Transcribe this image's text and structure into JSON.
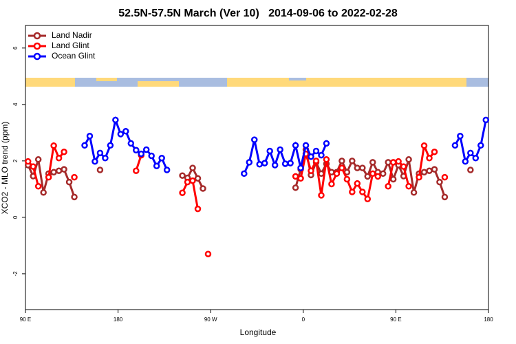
{
  "chart_data": {
    "type": "line",
    "title": "52.5N-57.5N March (Ver 10)   2014-09-06 to 2022-02-28",
    "x_label": "Longitude",
    "y_label": "XCO2 - MLO trend (ppm)",
    "x": [
      92.5,
      97.5,
      102.5,
      107.5,
      112.5,
      117.5,
      122.5,
      127.5,
      132.5,
      137.5,
      142.5,
      147.5,
      152.5,
      157.5,
      162.5,
      167.5,
      172.5,
      177.5,
      182.5,
      187.5,
      192.5,
      197.5,
      202.5,
      207.5,
      212.5,
      217.5,
      222.5,
      227.5,
      232.5,
      237.5,
      242.5,
      247.5,
      252.5,
      257.5,
      262.5,
      267.5,
      272.5,
      277.5,
      282.5,
      287.5,
      292.5,
      297.5,
      302.5,
      307.5,
      312.5,
      317.5,
      322.5,
      327.5,
      332.5,
      337.5,
      342.5,
      347.5,
      352.5,
      357.5,
      362.5,
      367.5,
      372.5,
      377.5,
      382.5,
      387.5,
      392.5,
      397.5,
      402.5,
      407.5,
      412.5,
      417.5,
      422.5,
      427.5,
      432.5,
      437.5,
      442.5,
      447.5,
      452.5,
      457.5,
      462.5,
      467.5,
      472.5,
      477.5,
      482.5,
      487.5,
      492.5,
      497.5,
      502.5,
      507.5,
      512.5,
      517.5,
      522.5,
      527.5,
      532.5,
      537.5
    ],
    "series": [
      {
        "name": "Land Nadir",
        "color": "#a52a2a",
        "values": [
          1.85,
          1.46,
          2.05,
          0.88,
          1.55,
          1.6,
          1.65,
          1.7,
          1.25,
          0.72,
          null,
          null,
          null,
          null,
          1.68,
          null,
          null,
          null,
          null,
          null,
          null,
          null,
          null,
          null,
          null,
          null,
          null,
          null,
          null,
          null,
          1.48,
          1.4,
          1.75,
          1.38,
          1.02,
          null,
          null,
          null,
          null,
          null,
          null,
          null,
          null,
          null,
          null,
          null,
          null,
          null,
          null,
          null,
          null,
          null,
          1.05,
          1.7,
          2.4,
          1.5,
          1.95,
          1.55,
          1.9,
          1.6,
          1.6,
          2.0,
          1.6,
          2.0,
          1.75,
          1.75,
          1.45,
          1.95,
          1.6,
          1.55,
          1.95,
          1.35,
          1.85,
          1.46,
          2.05,
          0.88,
          1.55,
          1.6,
          1.65,
          1.7,
          1.25,
          0.72,
          null,
          null,
          null,
          null,
          1.68,
          null,
          null,
          null
        ]
      },
      {
        "name": "Land Glint",
        "color": "#ff0000",
        "values": [
          1.98,
          1.8,
          1.1,
          null,
          1.42,
          2.54,
          2.1,
          2.32,
          null,
          1.42,
          null,
          null,
          null,
          null,
          null,
          null,
          null,
          null,
          null,
          null,
          null,
          1.65,
          2.2,
          null,
          null,
          null,
          null,
          null,
          null,
          null,
          0.87,
          1.25,
          1.3,
          0.3,
          null,
          -1.3,
          null,
          null,
          null,
          null,
          null,
          null,
          null,
          null,
          null,
          null,
          null,
          null,
          null,
          null,
          null,
          null,
          1.45,
          1.38,
          2.25,
          1.65,
          2.0,
          0.78,
          2.05,
          1.18,
          1.55,
          1.75,
          1.35,
          0.9,
          1.2,
          0.9,
          0.65,
          1.55,
          1.45,
          null,
          1.1,
          1.95,
          1.98,
          1.8,
          1.1,
          null,
          1.42,
          2.54,
          2.1,
          2.32,
          null,
          1.42,
          null,
          null,
          null,
          null,
          null,
          null,
          null,
          null
        ]
      },
      {
        "name": "Ocean Glint",
        "color": "#0000ff",
        "values": [
          null,
          null,
          null,
          null,
          null,
          null,
          null,
          null,
          null,
          null,
          null,
          2.55,
          2.88,
          1.98,
          2.28,
          2.1,
          2.55,
          3.45,
          2.95,
          3.05,
          2.62,
          2.38,
          2.25,
          2.4,
          2.18,
          1.82,
          2.1,
          1.68,
          null,
          null,
          null,
          null,
          null,
          null,
          null,
          null,
          null,
          null,
          null,
          null,
          null,
          null,
          1.55,
          1.95,
          2.75,
          1.88,
          1.92,
          2.35,
          1.85,
          2.4,
          1.9,
          1.92,
          2.55,
          1.75,
          2.55,
          2.15,
          2.35,
          2.2,
          2.62,
          null,
          null,
          null,
          null,
          null,
          null,
          null,
          null,
          null,
          null,
          null,
          null,
          null,
          null,
          null,
          null,
          null,
          null,
          null,
          null,
          null,
          null,
          null,
          null,
          2.55,
          2.88,
          1.98,
          2.28,
          2.1,
          2.55,
          3.45
        ]
      }
    ],
    "xlim": [
      90,
      540
    ],
    "xticks": [
      {
        "value": 90,
        "label": "90 E"
      },
      180,
      {
        "value": 270,
        "label": "90 W"
      },
      {
        "value": 360,
        "label": "0"
      },
      {
        "value": 450,
        "label": "90 E"
      },
      {
        "value": 540,
        "label": "180"
      }
    ],
    "ylim": [
      -3.27,
      6.8
    ],
    "yticks": [
      -2,
      0,
      2,
      4,
      6
    ],
    "grid": false,
    "legend": "top-left"
  }
}
